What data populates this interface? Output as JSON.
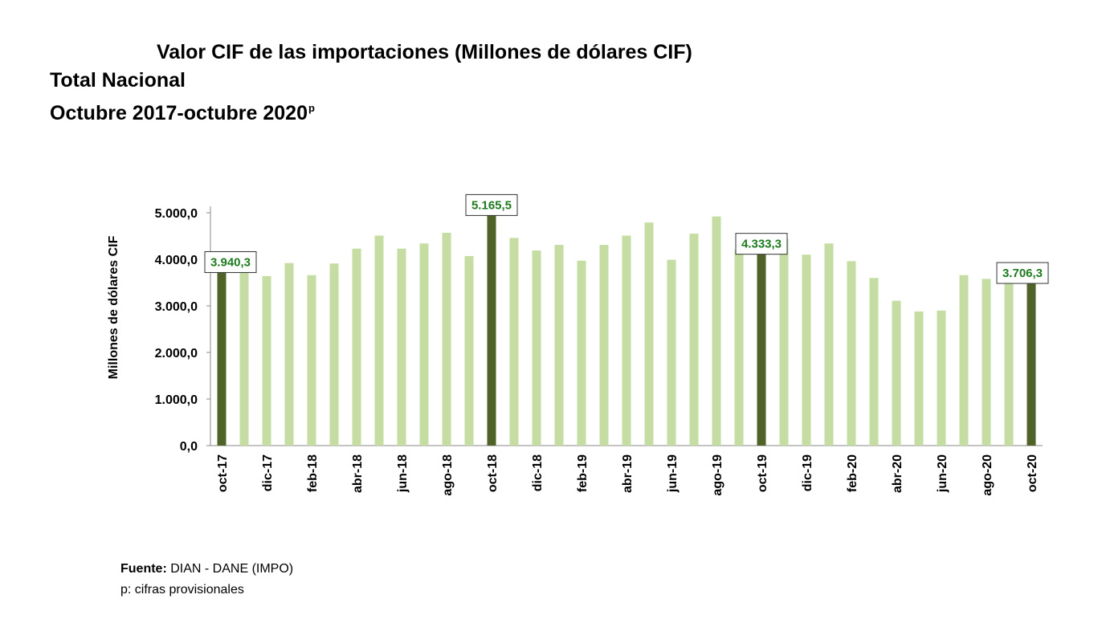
{
  "header": {
    "title": "Valor CIF de las importaciones (Millones de dólares CIF)",
    "subtitle": "Total Nacional",
    "period": "Octubre 2017-octubre 2020",
    "period_sup": "p"
  },
  "footer": {
    "source_label": "Fuente:",
    "source_text": "DIAN - DANE (IMPO)",
    "note": "p: cifras provisionales"
  },
  "colors": {
    "light_bar": "#c5dda3",
    "dark_bar": "#4f6228",
    "label_text": "#1e7a1e",
    "axis": "#888888"
  },
  "chart_data": {
    "type": "bar",
    "title": "Valor CIF de las importaciones (Millones de dólares CIF)",
    "ylabel": "Millones de dólares CIF",
    "xlabel": "",
    "ylim": [
      0,
      5000
    ],
    "yticks": [
      0,
      1000,
      2000,
      3000,
      4000,
      5000
    ],
    "ytick_labels": [
      "0,0",
      "1.000,0",
      "2.000,0",
      "3.000,0",
      "4.000,0",
      "5.000,0"
    ],
    "categories": [
      "oct-17",
      "nov-17",
      "dic-17",
      "ene-18",
      "feb-18",
      "mar-18",
      "abr-18",
      "may-18",
      "jun-18",
      "jul-18",
      "ago-18",
      "sep-18",
      "oct-18",
      "nov-18",
      "dic-18",
      "ene-19",
      "feb-19",
      "mar-19",
      "abr-19",
      "may-19",
      "jun-19",
      "jul-19",
      "ago-19",
      "sep-19",
      "oct-19",
      "nov-19",
      "dic-19",
      "ene-20",
      "feb-20",
      "mar-20",
      "abr-20",
      "may-20",
      "jun-20",
      "jul-20",
      "ago-20",
      "sep-20",
      "oct-20"
    ],
    "shown_tick_labels": [
      "oct-17",
      "dic-17",
      "feb-18",
      "abr-18",
      "jun-18",
      "ago-18",
      "oct-18",
      "dic-18",
      "feb-19",
      "abr-19",
      "jun-19",
      "ago-19",
      "oct-19",
      "dic-19",
      "feb-20",
      "abr-20",
      "jun-20",
      "ago-20",
      "oct-20"
    ],
    "values": [
      3940.3,
      3730,
      3640,
      3920,
      3660,
      3910,
      4230,
      4510,
      4230,
      4340,
      4570,
      4070,
      5165.5,
      4460,
      4190,
      4310,
      3970,
      4310,
      4510,
      4790,
      3990,
      4550,
      4920,
      4210,
      4333.3,
      4440,
      4100,
      4340,
      3960,
      3600,
      3110,
      2880,
      2900,
      3660,
      3580,
      3480,
      3706.3
    ],
    "highlighted": [
      0,
      12,
      24,
      36
    ],
    "data_labels": [
      {
        "index": 0,
        "text": "3.940,3"
      },
      {
        "index": 12,
        "text": "5.165,5"
      },
      {
        "index": 24,
        "text": "4.333,3"
      },
      {
        "index": 36,
        "text": "3.706,3"
      }
    ]
  }
}
